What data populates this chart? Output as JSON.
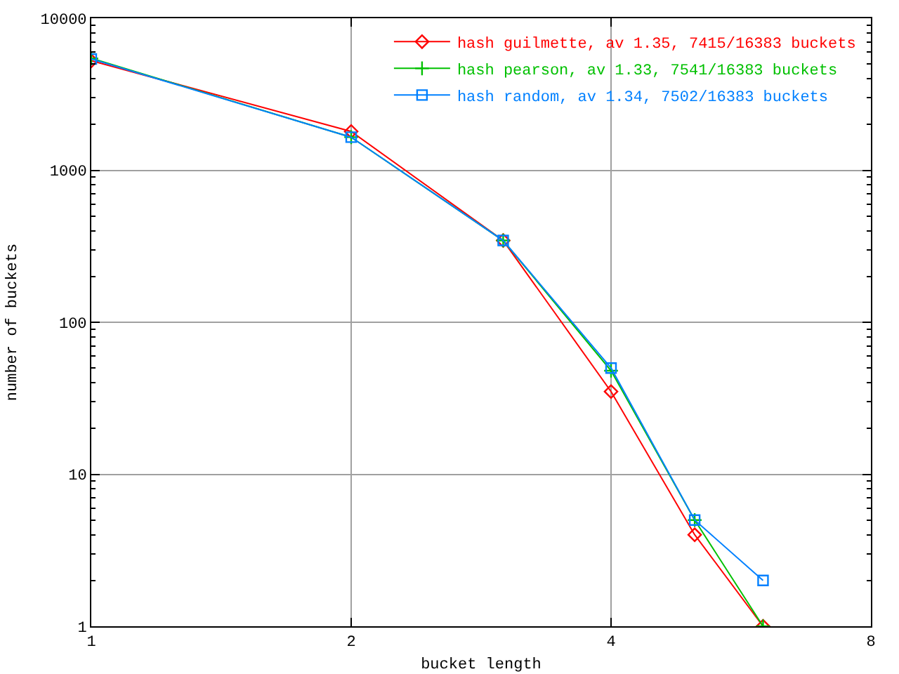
{
  "chart_data": {
    "type": "line",
    "xlabel": "bucket length",
    "ylabel": "number of buckets",
    "x": [
      1,
      2,
      3,
      4,
      5,
      6
    ],
    "series": [
      {
        "name": "hash guilmette, av 1.35, 7415/16383 buckets",
        "color": "#ff0000",
        "marker": "diamond",
        "values": [
          5250,
          1800,
          345,
          35,
          4,
          1
        ]
      },
      {
        "name": "hash pearson, av 1.33, 7541/16383 buckets",
        "color": "#00c000",
        "marker": "cross",
        "values": [
          5450,
          1650,
          345,
          48,
          5,
          1
        ]
      },
      {
        "name": "hash random, av 1.34, 7502/16383 buckets",
        "color": "#0080ff",
        "marker": "square",
        "values": [
          5400,
          1650,
          345,
          50,
          5,
          2
        ]
      }
    ],
    "log": "xy",
    "xlim": [
      1,
      8
    ],
    "xticks": [
      1,
      2,
      4,
      8
    ],
    "ylim": [
      1,
      10000
    ],
    "yticks": [
      1,
      10,
      100,
      1000,
      10000
    ],
    "grid": true,
    "legend": "top right",
    "line_style": "solid"
  }
}
